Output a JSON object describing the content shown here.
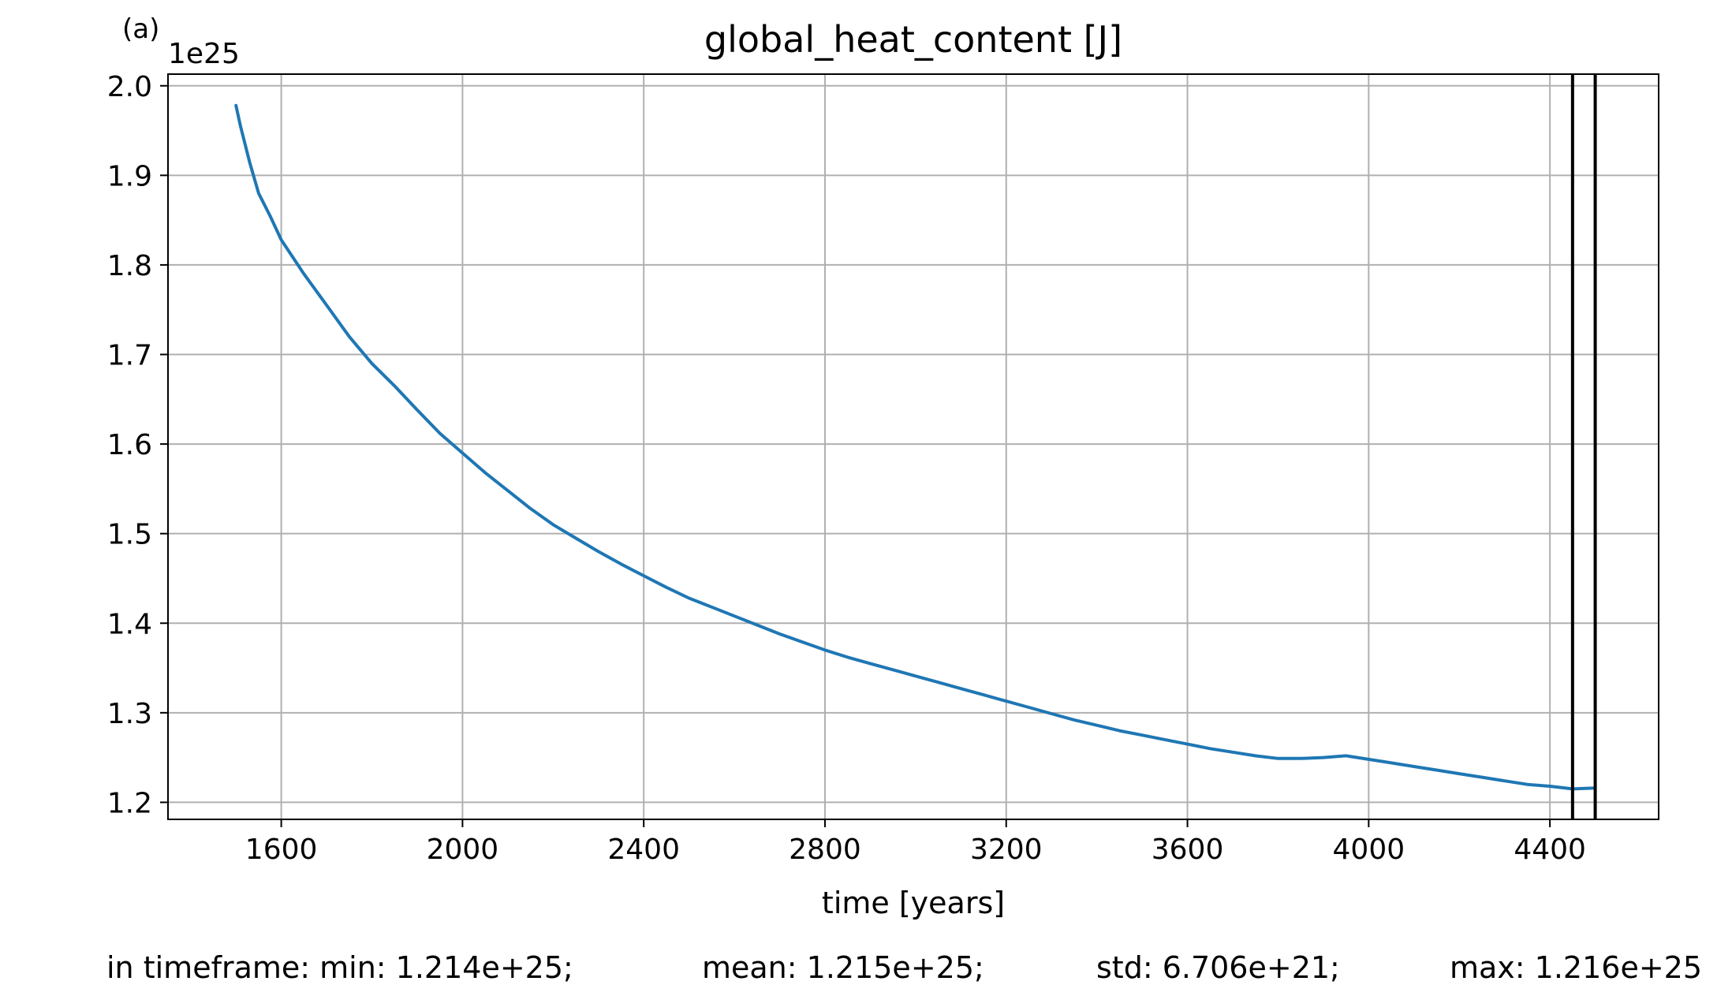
{
  "panel_label": "(a)",
  "chart_data": {
    "type": "line",
    "title": "global_heat_content [J]",
    "xlabel": "time [years]",
    "ylabel": "",
    "y_offset_label": "1e25",
    "xlim": [
      1350,
      4640
    ],
    "ylim": [
      1.181,
      2.013
    ],
    "xticks": [
      1600,
      2000,
      2400,
      2800,
      3200,
      3600,
      4000,
      4400
    ],
    "yticks": [
      1.2,
      1.3,
      1.4,
      1.5,
      1.6,
      1.7,
      1.8,
      1.9,
      2.0
    ],
    "ytick_labels": [
      "1.2",
      "1.3",
      "1.4",
      "1.5",
      "1.6",
      "1.7",
      "1.8",
      "1.9",
      "2.0"
    ],
    "grid": true,
    "series": [
      {
        "color": "#1f77b4",
        "x": [
          1500,
          1510,
          1530,
          1550,
          1575,
          1600,
          1650,
          1700,
          1750,
          1800,
          1850,
          1900,
          1950,
          2000,
          2050,
          2100,
          2150,
          2200,
          2250,
          2300,
          2350,
          2400,
          2450,
          2500,
          2550,
          2600,
          2650,
          2700,
          2750,
          2800,
          2850,
          2900,
          2950,
          3000,
          3050,
          3100,
          3150,
          3200,
          3250,
          3300,
          3350,
          3400,
          3450,
          3500,
          3550,
          3600,
          3650,
          3700,
          3750,
          3800,
          3850,
          3900,
          3950,
          4000,
          4050,
          4100,
          4150,
          4200,
          4250,
          4300,
          4350,
          4400,
          4450,
          4500
        ],
        "y": [
          1.978,
          1.955,
          1.915,
          1.88,
          1.855,
          1.828,
          1.79,
          1.755,
          1.72,
          1.69,
          1.665,
          1.638,
          1.612,
          1.59,
          1.568,
          1.548,
          1.528,
          1.51,
          1.495,
          1.48,
          1.466,
          1.453,
          1.44,
          1.428,
          1.418,
          1.408,
          1.398,
          1.388,
          1.379,
          1.37,
          1.362,
          1.355,
          1.348,
          1.341,
          1.334,
          1.327,
          1.32,
          1.313,
          1.306,
          1.299,
          1.292,
          1.286,
          1.28,
          1.275,
          1.27,
          1.265,
          1.26,
          1.256,
          1.252,
          1.249,
          1.249,
          1.25,
          1.252,
          1.248,
          1.244,
          1.24,
          1.236,
          1.232,
          1.228,
          1.224,
          1.22,
          1.218,
          1.215,
          1.216
        ]
      }
    ],
    "vertical_lines": [
      {
        "x": 4450,
        "color": "#000000"
      },
      {
        "x": 4500,
        "color": "#000000"
      }
    ]
  },
  "stats": {
    "prefix": "in timeframe: min: 1.214e+25;",
    "mean": "mean: 1.215e+25;",
    "std": "std: 6.706e+21;",
    "max": "max: 1.216e+25"
  }
}
